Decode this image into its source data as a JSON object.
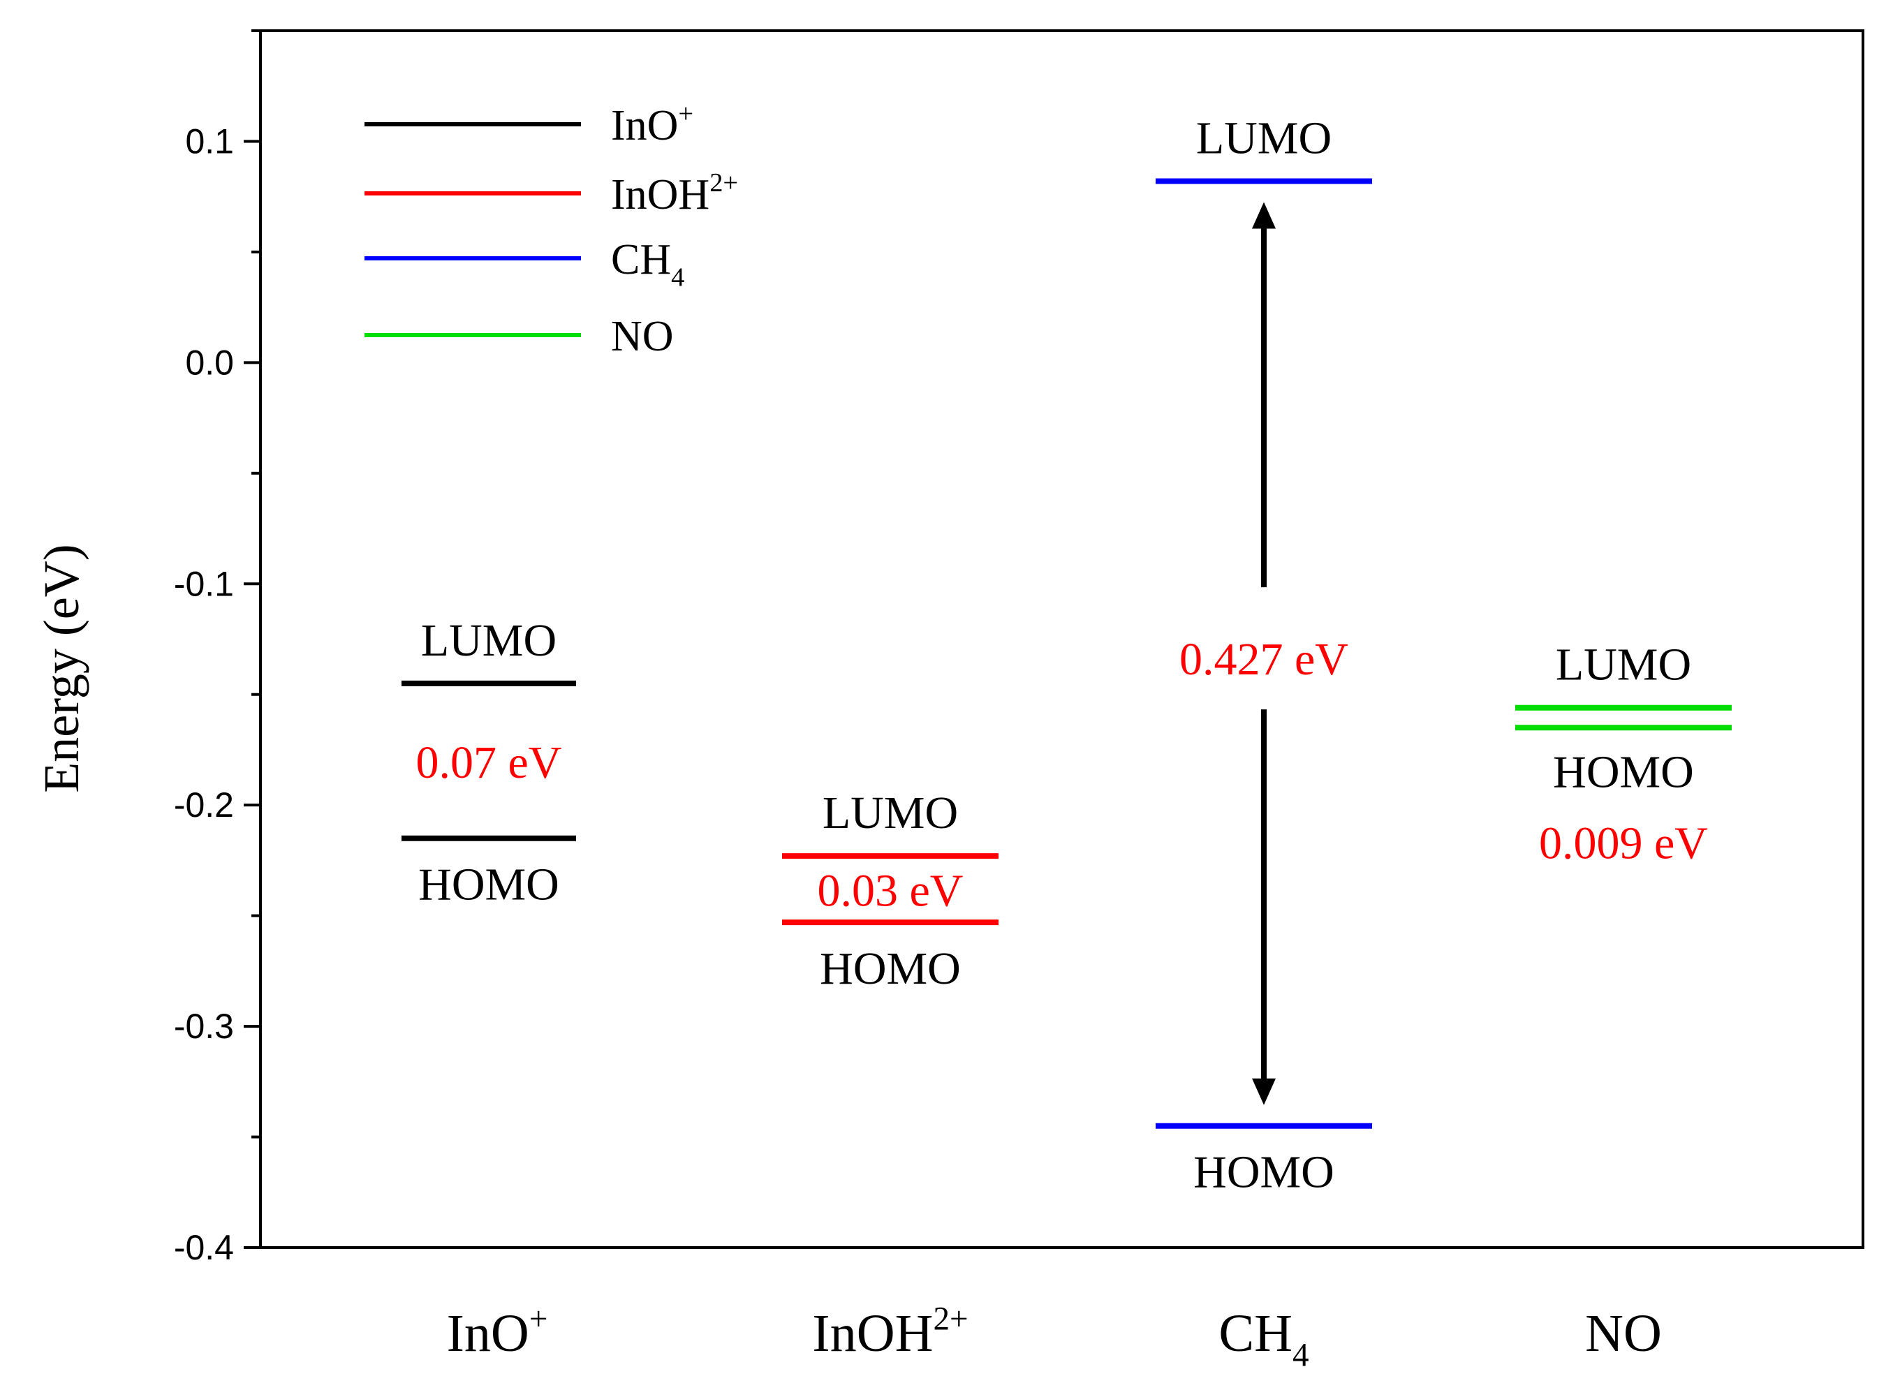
{
  "chart_data": {
    "type": "energy-level-diagram",
    "title": "",
    "ylabel": "Energy (eV)",
    "ylim": [
      -0.4,
      0.15
    ],
    "yticks": [
      0.1,
      0.0,
      -0.1,
      -0.2,
      -0.3,
      -0.4
    ],
    "ytick_labels": [
      "0.1",
      "0.0",
      "-0.1",
      "-0.2",
      "-0.3",
      "-0.4"
    ],
    "legend": {
      "position": "top-left",
      "entries": [
        {
          "name": "InO",
          "sup": "+",
          "sub": "",
          "color": "#000000"
        },
        {
          "name": "InOH",
          "sup": "2+",
          "sub": "",
          "color": "#ff0000"
        },
        {
          "name": "CH",
          "sup": "",
          "sub": "4",
          "color": "#0000ff"
        },
        {
          "name": "NO",
          "sup": "",
          "sub": "",
          "color": "#00dd00"
        }
      ]
    },
    "categories": [
      {
        "name": "InO",
        "sup": "+",
        "sub": ""
      },
      {
        "name": "InOH",
        "sup": "2+",
        "sub": ""
      },
      {
        "name": "CH",
        "sup": "",
        "sub": "4"
      },
      {
        "name": "NO",
        "sup": "",
        "sub": ""
      }
    ],
    "series": [
      {
        "name": "InO+",
        "color": "#000000",
        "lumo": -0.145,
        "homo": -0.215,
        "gap_label": "0.07 eV",
        "lumo_label": "LUMO",
        "homo_label": "HOMO"
      },
      {
        "name": "InOH2+",
        "color": "#ff0000",
        "lumo": -0.223,
        "homo": -0.253,
        "gap_label": "0.03 eV",
        "lumo_label": "LUMO",
        "homo_label": "HOMO"
      },
      {
        "name": "CH4",
        "color": "#0000ff",
        "lumo": 0.082,
        "homo": -0.345,
        "gap_label": "0.427 eV",
        "lumo_label": "LUMO",
        "homo_label": "HOMO"
      },
      {
        "name": "NO",
        "color": "#00dd00",
        "lumo": -0.156,
        "homo": -0.165,
        "gap_label": "0.009 eV",
        "lumo_label": "LUMO",
        "homo_label": "HOMO"
      }
    ],
    "gap_label_color": "#ff0000"
  }
}
